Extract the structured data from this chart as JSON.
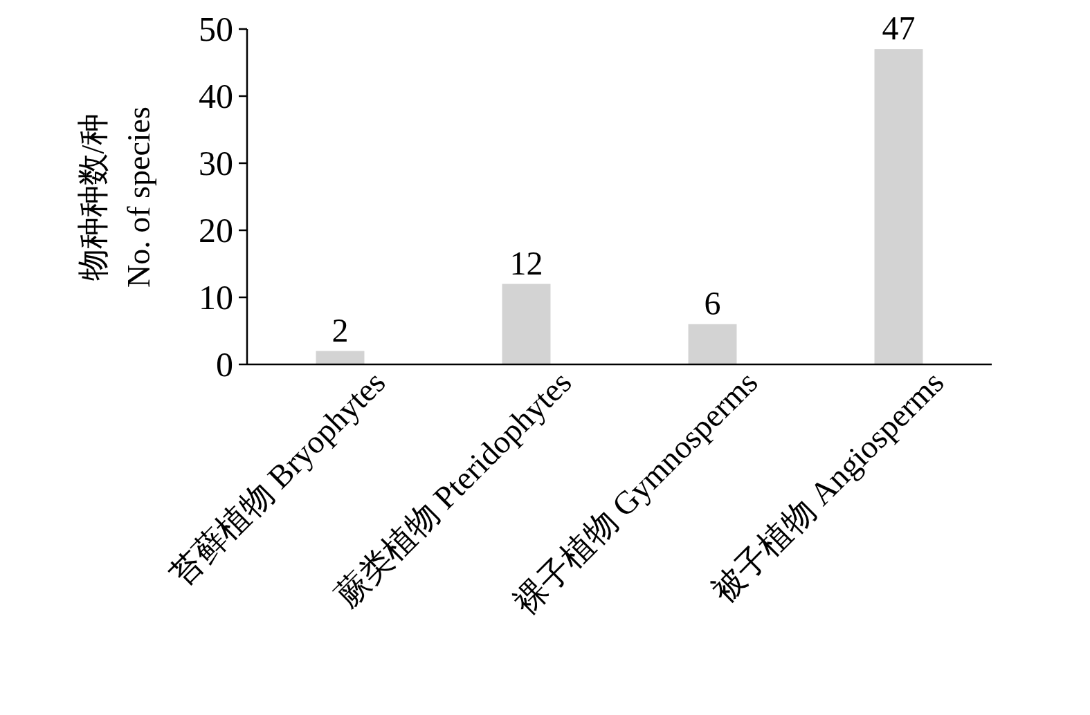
{
  "chart_data": {
    "type": "bar",
    "ylabel": "物种种数/种\nNo. of species",
    "categories": [
      "苔藓植物 Bryophytes",
      "蕨类植物 Pteridophytes",
      "裸子植物 Gymnosperms",
      "被子植物 Angiosperms"
    ],
    "values": [
      2,
      12,
      6,
      47
    ],
    "color": "#d3d3d3",
    "ylim": [
      0,
      50
    ],
    "yticks": [
      0,
      10,
      20,
      30,
      40,
      50
    ],
    "data_labels": true,
    "grid": false
  }
}
